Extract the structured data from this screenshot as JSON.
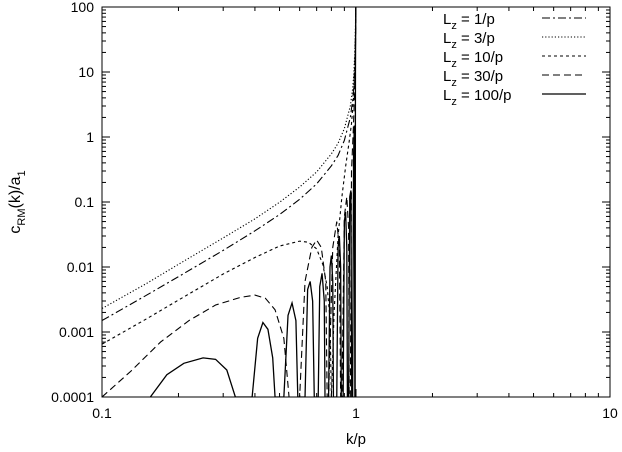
{
  "chart_data": {
    "type": "line",
    "xlabel": "k/p",
    "ylabel_main": "c",
    "ylabel_sub": "RM",
    "ylabel_mid": "(k)/a",
    "ylabel_sub2": "1",
    "x_scale": "log",
    "y_scale": "log",
    "xlim": [
      0.1,
      10
    ],
    "ylim": [
      0.0001,
      100
    ],
    "x_ticks": [
      {
        "value": 0.1,
        "label": "0.1"
      },
      {
        "value": 1,
        "label": "1"
      },
      {
        "value": 10,
        "label": "10"
      }
    ],
    "y_ticks": [
      {
        "value": 0.0001,
        "label": "0.0001"
      },
      {
        "value": 0.001,
        "label": "0.001"
      },
      {
        "value": 0.01,
        "label": "0.01"
      },
      {
        "value": 0.1,
        "label": "0.1"
      },
      {
        "value": 1,
        "label": "1"
      },
      {
        "value": 10,
        "label": "10"
      },
      {
        "value": 100,
        "label": "100"
      }
    ],
    "grid": false,
    "legend_position": "top-right",
    "series": [
      {
        "name_main": "L",
        "name_sub": "z",
        "name_rest": "= 1/p",
        "dash": "dashdot",
        "points": [
          [
            0.1,
            0.0015
          ],
          [
            0.15,
            0.0037
          ],
          [
            0.2,
            0.0071
          ],
          [
            0.3,
            0.018
          ],
          [
            0.4,
            0.036
          ],
          [
            0.5,
            0.064
          ],
          [
            0.6,
            0.11
          ],
          [
            0.7,
            0.19
          ],
          [
            0.8,
            0.36
          ],
          [
            0.85,
            0.52
          ],
          [
            0.9,
            0.89
          ],
          [
            0.95,
            2.0
          ],
          [
            0.97,
            3.7
          ],
          [
            0.98,
            5.8
          ],
          [
            0.99,
            15
          ],
          [
            0.995,
            35
          ],
          [
            0.998,
            100
          ]
        ]
      },
      {
        "name_main": "L",
        "name_sub": "z",
        "name_rest": "= 3/p",
        "dash": "dotted",
        "points": [
          [
            0.1,
            0.0023
          ],
          [
            0.15,
            0.0056
          ],
          [
            0.2,
            0.011
          ],
          [
            0.3,
            0.028
          ],
          [
            0.4,
            0.055
          ],
          [
            0.5,
            0.099
          ],
          [
            0.6,
            0.17
          ],
          [
            0.7,
            0.29
          ],
          [
            0.8,
            0.55
          ],
          [
            0.85,
            0.8
          ],
          [
            0.9,
            1.35
          ],
          [
            0.95,
            3.0
          ],
          [
            0.97,
            5.5
          ],
          [
            0.98,
            9
          ],
          [
            0.99,
            22
          ],
          [
            0.995,
            50
          ],
          [
            0.997,
            100
          ]
        ]
      },
      {
        "name_main": "L",
        "name_sub": "z",
        "name_rest": "= 10/p",
        "dash": "short-dash",
        "points": [
          [
            0.1,
            0.00065
          ],
          [
            0.15,
            0.0016
          ],
          [
            0.2,
            0.0031
          ],
          [
            0.3,
            0.0078
          ],
          [
            0.4,
            0.014
          ],
          [
            0.5,
            0.021
          ],
          [
            0.6,
            0.025
          ],
          [
            0.65,
            0.024
          ],
          [
            0.7,
            0.019
          ],
          [
            0.74,
            0.011
          ],
          [
            0.77,
            0.005
          ],
          [
            0.79,
            0.0016
          ],
          [
            0.8,
            0.0001
          ],
          [
            0.82,
            0.002
          ],
          [
            0.85,
            0.03
          ],
          [
            0.88,
            0.12
          ],
          [
            0.91,
            0.35
          ],
          [
            0.94,
            0.85
          ],
          [
            0.96,
            1.6
          ],
          [
            0.98,
            4.5
          ],
          [
            0.99,
            12
          ],
          [
            0.995,
            35
          ],
          [
            0.998,
            100
          ]
        ]
      },
      {
        "name_main": "L",
        "name_sub": "z",
        "name_rest": "= 30/p",
        "dash": "long-dash",
        "points": [
          [
            0.1,
            0.0001
          ],
          [
            0.13,
            0.00025
          ],
          [
            0.17,
            0.0007
          ],
          [
            0.22,
            0.0015
          ],
          [
            0.28,
            0.0026
          ],
          [
            0.35,
            0.0034
          ],
          [
            0.4,
            0.0037
          ],
          [
            0.44,
            0.0033
          ],
          [
            0.48,
            0.0022
          ],
          [
            0.52,
            0.0008
          ],
          [
            0.545,
            0.0001
          ],
          [
            0.6,
            0.0001
          ],
          [
            0.63,
            0.006
          ],
          [
            0.67,
            0.02
          ],
          [
            0.7,
            0.026
          ],
          [
            0.73,
            0.02
          ],
          [
            0.76,
            0.006
          ],
          [
            0.77,
            0.0001
          ],
          [
            0.78,
            0.0001
          ],
          [
            0.81,
            0.02
          ],
          [
            0.84,
            0.05
          ],
          [
            0.86,
            0.02
          ],
          [
            0.87,
            0.0001
          ],
          [
            0.88,
            0.0001
          ],
          [
            0.9,
            0.06
          ],
          [
            0.92,
            0.12
          ],
          [
            0.935,
            0.04
          ],
          [
            0.94,
            0.0001
          ],
          [
            0.95,
            0.0001
          ],
          [
            0.96,
            0.3
          ],
          [
            0.975,
            1.2
          ],
          [
            0.985,
            3.5
          ],
          [
            0.993,
            12
          ],
          [
            0.997,
            40
          ],
          [
            0.999,
            100
          ]
        ]
      },
      {
        "name_main": "L",
        "name_sub": "z",
        "name_rest": "= 100/p",
        "dash": "solid",
        "points": [
          [
            0.155,
            0.0001
          ],
          [
            0.18,
            0.00022
          ],
          [
            0.21,
            0.00033
          ],
          [
            0.25,
            0.0004
          ],
          [
            0.28,
            0.00038
          ],
          [
            0.31,
            0.00026
          ],
          [
            0.335,
            0.0001
          ],
          [
            0.39,
            0.0001
          ],
          [
            0.41,
            0.0008
          ],
          [
            0.43,
            0.0014
          ],
          [
            0.45,
            0.0011
          ],
          [
            0.47,
            0.0004
          ],
          [
            0.48,
            0.0001
          ],
          [
            0.52,
            0.0001
          ],
          [
            0.54,
            0.0018
          ],
          [
            0.56,
            0.0028
          ],
          [
            0.58,
            0.0015
          ],
          [
            0.59,
            0.0001
          ],
          [
            0.63,
            0.0001
          ],
          [
            0.645,
            0.0045
          ],
          [
            0.66,
            0.006
          ],
          [
            0.675,
            0.003
          ],
          [
            0.685,
            0.0001
          ],
          [
            0.71,
            0.0001
          ],
          [
            0.72,
            0.005
          ],
          [
            0.735,
            0.008
          ],
          [
            0.75,
            0.003
          ],
          [
            0.755,
            0.0001
          ],
          [
            0.78,
            0.0001
          ],
          [
            0.79,
            0.01
          ],
          [
            0.8,
            0.015
          ],
          [
            0.81,
            0.006
          ],
          [
            0.815,
            0.0001
          ],
          [
            0.84,
            0.0001
          ],
          [
            0.85,
            0.02
          ],
          [
            0.86,
            0.03
          ],
          [
            0.87,
            0.01
          ],
          [
            0.875,
            0.0001
          ],
          [
            0.89,
            0.0001
          ],
          [
            0.9,
            0.05
          ],
          [
            0.91,
            0.07
          ],
          [
            0.92,
            0.02
          ],
          [
            0.925,
            0.0001
          ],
          [
            0.935,
            0.0001
          ],
          [
            0.945,
            0.12
          ],
          [
            0.955,
            0.15
          ],
          [
            0.962,
            0.0001
          ],
          [
            0.97,
            0.0001
          ],
          [
            0.978,
            0.5
          ],
          [
            0.985,
            1.5
          ],
          [
            0.99,
            0.0001
          ],
          [
            0.992,
            0.0001
          ],
          [
            0.995,
            10
          ],
          [
            0.998,
            100
          ]
        ]
      }
    ]
  }
}
